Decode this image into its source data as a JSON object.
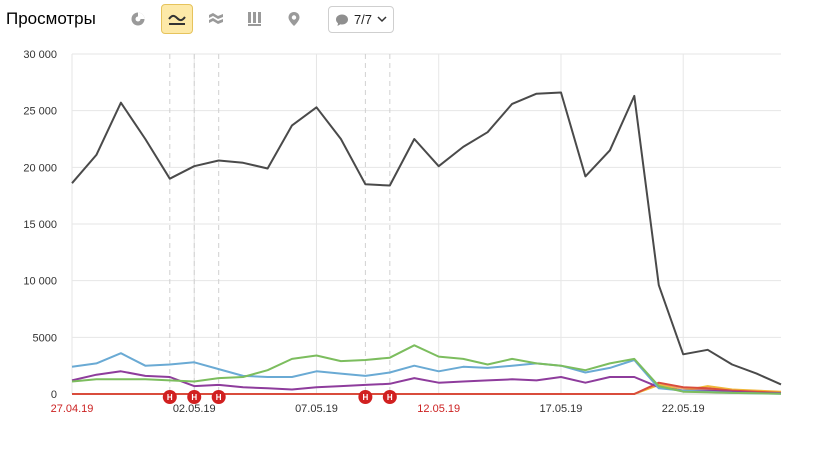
{
  "header": {
    "title": "Просмотры",
    "series_counter": "7/7",
    "buttons": [
      {
        "name": "pie-chart-icon",
        "active": false
      },
      {
        "name": "line-chart-icon",
        "active": true
      },
      {
        "name": "area-chart-icon",
        "active": false
      },
      {
        "name": "bar-chart-icon",
        "active": false
      },
      {
        "name": "map-marker-icon",
        "active": false
      }
    ]
  },
  "colors": {
    "axis_text": "#333333",
    "date_red": "#cc2222",
    "grid": "#e6e6e6",
    "active_button": "#fde9a8",
    "marker": "#d12020"
  },
  "chart_data": {
    "type": "line",
    "x": [
      "27.04.19",
      "28.04.19",
      "29.04.19",
      "30.04.19",
      "01.05.19",
      "02.05.19",
      "03.05.19",
      "04.05.19",
      "05.05.19",
      "06.05.19",
      "07.05.19",
      "08.05.19",
      "09.05.19",
      "10.05.19",
      "11.05.19",
      "12.05.19",
      "13.05.19",
      "14.05.19",
      "15.05.19",
      "16.05.19",
      "17.05.19",
      "18.05.19",
      "19.05.19",
      "20.05.19",
      "21.05.19",
      "22.05.19",
      "23.05.19",
      "24.05.19",
      "25.05.19",
      "26.05.19"
    ],
    "x_tick_labels": [
      {
        "label": "27.04.19",
        "holiday": true
      },
      {
        "label": "02.05.19",
        "holiday": false
      },
      {
        "label": "07.05.19",
        "holiday": false
      },
      {
        "label": "12.05.19",
        "holiday": true
      },
      {
        "label": "17.05.19",
        "holiday": false
      },
      {
        "label": "22.05.19",
        "holiday": false
      }
    ],
    "ylim": [
      0,
      30000
    ],
    "y_ticks": [
      "30 000",
      "25 000",
      "20 000",
      "15 000",
      "10 000",
      "5000",
      "0"
    ],
    "grid": true,
    "series": [
      {
        "color": "#4a4a4a",
        "values": [
          18600,
          21100,
          25700,
          22500,
          19000,
          20100,
          20600,
          20400,
          19900,
          23700,
          25300,
          22500,
          18500,
          18400,
          22500,
          20100,
          21800,
          23100,
          25600,
          26500,
          26600,
          19200,
          21500,
          26300,
          9600,
          3500,
          3900,
          2600,
          1800,
          850
        ]
      },
      {
        "color": "#7cbd5e",
        "values": [
          1100,
          1300,
          1300,
          1300,
          1200,
          1100,
          1400,
          1500,
          2100,
          3100,
          3400,
          2900,
          3000,
          3200,
          4300,
          3300,
          3100,
          2600,
          3100,
          2700,
          2500,
          2100,
          2700,
          3100,
          700,
          200,
          150,
          100,
          60,
          30
        ]
      },
      {
        "color": "#6aaad4",
        "values": [
          2400,
          2700,
          3600,
          2500,
          2600,
          2800,
          2200,
          1600,
          1500,
          1500,
          2000,
          1800,
          1600,
          1900,
          2500,
          2000,
          2400,
          2300,
          2500,
          2700,
          2500,
          1900,
          2300,
          3000,
          500,
          300,
          200,
          100,
          50,
          30
        ]
      },
      {
        "color": "#8e3c9c",
        "values": [
          1200,
          1700,
          2000,
          1600,
          1500,
          700,
          800,
          600,
          500,
          400,
          600,
          700,
          800,
          900,
          1400,
          1000,
          1100,
          1200,
          1300,
          1200,
          1500,
          1000,
          1500,
          1500,
          600,
          300,
          300,
          200,
          100,
          80
        ]
      },
      {
        "color": "#d94c3c",
        "values": [
          0,
          0,
          0,
          0,
          0,
          0,
          0,
          0,
          0,
          0,
          0,
          0,
          0,
          0,
          0,
          0,
          0,
          0,
          0,
          0,
          0,
          0,
          0,
          0,
          1000,
          600,
          500,
          300,
          200,
          100
        ]
      },
      {
        "color": "#f0b83a",
        "values": [
          0,
          0,
          0,
          0,
          0,
          0,
          0,
          0,
          0,
          0,
          0,
          0,
          0,
          0,
          0,
          0,
          0,
          0,
          0,
          0,
          0,
          0,
          0,
          0,
          800,
          300,
          700,
          400,
          300,
          200
        ]
      },
      {
        "color": "#e8a06a",
        "values": [
          0,
          0,
          0,
          0,
          0,
          0,
          0,
          0,
          0,
          0,
          0,
          0,
          0,
          0,
          0,
          0,
          0,
          0,
          0,
          0,
          0,
          0,
          0,
          0,
          900,
          500,
          400,
          200,
          150,
          100
        ]
      }
    ],
    "annotations": [
      {
        "date": "01.05.19",
        "label": "H"
      },
      {
        "date": "02.05.19",
        "label": "H"
      },
      {
        "date": "03.05.19",
        "label": "H"
      },
      {
        "date": "09.05.19",
        "label": "H"
      },
      {
        "date": "10.05.19",
        "label": "H"
      }
    ]
  }
}
